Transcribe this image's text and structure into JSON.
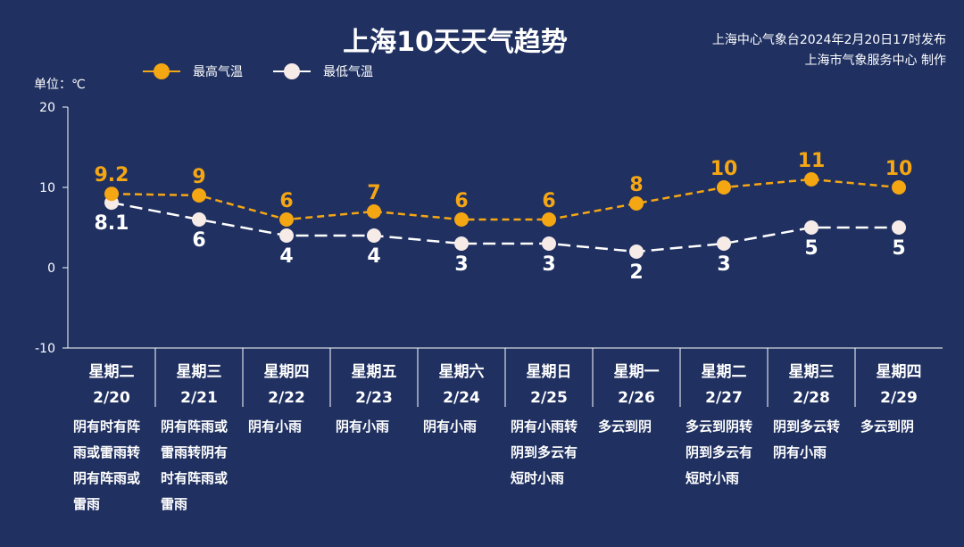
{
  "header": {
    "title": "上海10天天气趋势",
    "source_line1": "上海中心气象台2024年2月20日17时发布",
    "source_line2": "上海市气象服务中心 制作",
    "unit_label": "单位：℃"
  },
  "colors": {
    "background": "#1f3061",
    "high": "#f5a613",
    "low": "#ffffff",
    "low_dot": "#f7ebe8"
  },
  "chart_data": {
    "type": "line",
    "ylim": [
      -10,
      20
    ],
    "yticks": [
      20,
      10,
      0,
      -10
    ],
    "categories": [
      {
        "weekday": "星期二",
        "date": "2/20",
        "weather": [
          "阴有时有阵",
          "雨或雷雨转",
          "阴有阵雨或",
          "雷雨"
        ]
      },
      {
        "weekday": "星期三",
        "date": "2/21",
        "weather": [
          "阴有阵雨或",
          "雷雨转阴有",
          "时有阵雨或",
          "雷雨"
        ]
      },
      {
        "weekday": "星期四",
        "date": "2/22",
        "weather": [
          "阴有小雨"
        ]
      },
      {
        "weekday": "星期五",
        "date": "2/23",
        "weather": [
          "阴有小雨"
        ]
      },
      {
        "weekday": "星期六",
        "date": "2/24",
        "weather": [
          "阴有小雨"
        ]
      },
      {
        "weekday": "星期日",
        "date": "2/25",
        "weather": [
          "阴有小雨转",
          "阴到多云有",
          "短时小雨"
        ]
      },
      {
        "weekday": "星期一",
        "date": "2/26",
        "weather": [
          "多云到阴"
        ]
      },
      {
        "weekday": "星期二",
        "date": "2/27",
        "weather": [
          "多云到阴转",
          "阴到多云有",
          "短时小雨"
        ]
      },
      {
        "weekday": "星期三",
        "date": "2/28",
        "weather": [
          "阴到多云转",
          "阴有小雨"
        ]
      },
      {
        "weekday": "星期四",
        "date": "2/29",
        "weather": [
          "多云到阴"
        ]
      }
    ],
    "series": [
      {
        "name": "最高气温",
        "values": [
          9.2,
          9,
          6,
          7,
          6,
          6,
          8,
          10,
          11,
          10
        ]
      },
      {
        "name": "最低气温",
        "values": [
          8.1,
          6,
          4,
          4,
          3,
          3,
          2,
          3,
          5,
          5
        ]
      }
    ]
  }
}
